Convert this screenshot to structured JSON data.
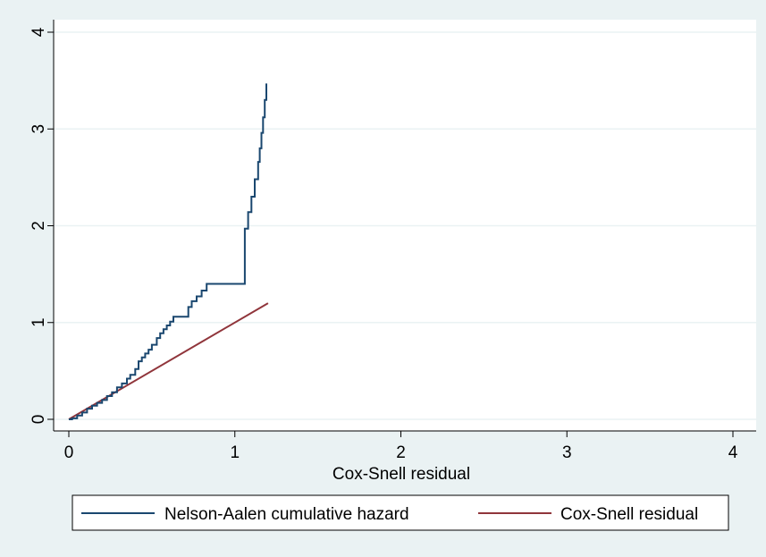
{
  "chart_data": {
    "type": "line",
    "title": "",
    "xlabel": "Cox-Snell residual",
    "ylabel": "",
    "xlim": [
      0,
      4
    ],
    "ylim": [
      0,
      4
    ],
    "x_ticks": [
      0,
      1,
      2,
      3,
      4
    ],
    "y_ticks": [
      0,
      1,
      2,
      3,
      4
    ],
    "x_tick_labels": [
      "0",
      "1",
      "2",
      "3",
      "4"
    ],
    "y_tick_labels": [
      "0",
      "1",
      "2",
      "3",
      "4"
    ],
    "grid": "horizontal",
    "legend_position": "bottom",
    "colors": {
      "background": "#eaf2f3",
      "plot_area": "#ffffff",
      "grid": "#eaf2f3",
      "nelson_aalen": "#1a476f",
      "cox_snell": "#90353b"
    },
    "series": [
      {
        "name": "Nelson-Aalen cumulative hazard",
        "color": "#1a476f",
        "step": true,
        "x": [
          0,
          0.02,
          0.05,
          0.08,
          0.11,
          0.14,
          0.17,
          0.2,
          0.23,
          0.26,
          0.29,
          0.32,
          0.35,
          0.37,
          0.4,
          0.42,
          0.44,
          0.46,
          0.48,
          0.5,
          0.53,
          0.55,
          0.57,
          0.59,
          0.61,
          0.63,
          0.66,
          0.72,
          0.74,
          0.77,
          0.8,
          0.83,
          1.05,
          1.06,
          1.08,
          1.1,
          1.12,
          1.14,
          1.15,
          1.16,
          1.17,
          1.18,
          1.19
        ],
        "values": [
          0,
          0.01,
          0.04,
          0.07,
          0.11,
          0.14,
          0.17,
          0.2,
          0.24,
          0.28,
          0.33,
          0.37,
          0.42,
          0.46,
          0.52,
          0.6,
          0.64,
          0.68,
          0.72,
          0.77,
          0.84,
          0.89,
          0.93,
          0.97,
          1.01,
          1.06,
          1.06,
          1.16,
          1.22,
          1.27,
          1.33,
          1.4,
          1.4,
          1.97,
          2.14,
          2.3,
          2.48,
          2.66,
          2.8,
          2.96,
          3.12,
          3.3,
          3.47
        ]
      },
      {
        "name": "Cox-Snell residual",
        "color": "#90353b",
        "step": false,
        "x": [
          0,
          1.2
        ],
        "values": [
          0,
          1.2
        ]
      }
    ]
  }
}
